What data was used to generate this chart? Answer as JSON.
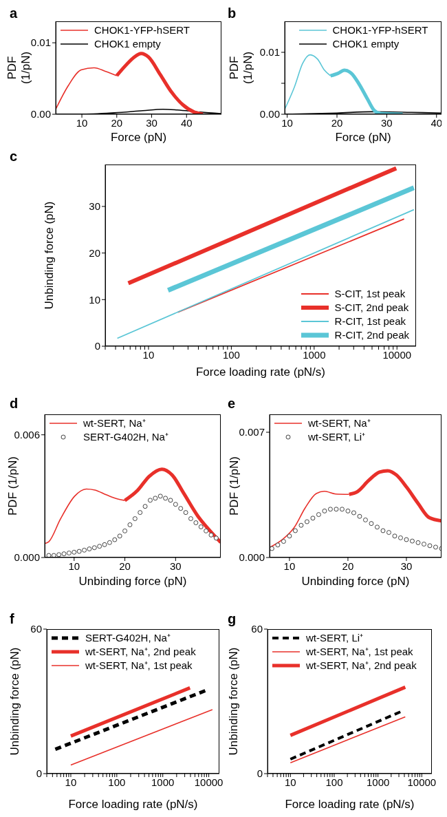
{
  "chart_data": [
    {
      "type": "line",
      "title": "a",
      "xlabel": "Force (pN)",
      "ylabel": "PDF (1/pN)",
      "xlim": [
        2.5,
        50
      ],
      "xticks": [
        10,
        20,
        30,
        40
      ],
      "ylim": [
        0,
        0.013
      ],
      "yticks": [
        {
          "value": 0,
          "label": "0.00"
        },
        {
          "value": 0.01,
          "label": "0.01"
        }
      ],
      "legend": "top left",
      "grid": false,
      "series": [
        {
          "name": "CHOK1-YFP-hSERT",
          "color": "#e8302a",
          "x": [
            2.5,
            6.1,
            9.8,
            13.5,
            16.8,
            20
          ],
          "values": [
            0.0007,
            0.004,
            0.0062,
            0.0065,
            0.006,
            0.0054
          ]
        },
        {
          "name": "CHOK1 empty",
          "color": "#000000",
          "x": [
            2.5,
            9.4,
            19.3,
            27.5,
            33.2,
            37.3,
            43.9,
            49.8
          ],
          "values": [
            0,
            0,
            0.0002,
            0.0005,
            0.0007,
            0.0006,
            0.0003,
            0.0001
          ]
        },
        {
          "color": "#e8302a",
          "x": [
            20,
            22.5,
            25,
            27,
            29.1,
            32.4,
            35.7,
            39,
            42.2,
            44.7
          ],
          "values": [
            0.0054,
            0.0068,
            0.008,
            0.0085,
            0.008,
            0.0056,
            0.0031,
            0.0013,
            0.0003,
            0
          ]
        }
      ]
    },
    {
      "type": "line",
      "title": "b",
      "xlabel": "Force (pN)",
      "ylabel": "PDF (1/pN)",
      "xlim": [
        9.5,
        41
      ],
      "xticks": [
        10,
        20,
        30,
        40
      ],
      "ylim": [
        0,
        0.015
      ],
      "yticks": [
        {
          "value": 0,
          "label": "0.00"
        },
        {
          "value": 0.005,
          "label": null
        },
        {
          "value": 0.01,
          "label": "0.01"
        }
      ],
      "legend": "top",
      "grid": false,
      "series": [
        {
          "name": "CHOK1-YFP-hSERT",
          "color": "#5bc6d6",
          "x": [
            9.5,
            11.5,
            13.1,
            14.6,
            16.1,
            17.5,
            18.7
          ],
          "values": [
            0.0008,
            0.0045,
            0.0082,
            0.0096,
            0.0089,
            0.0071,
            0.0062
          ]
        },
        {
          "name": "CHOK1 empty",
          "color": "#000000",
          "x": [
            9.5,
            20,
            27,
            35,
            41
          ],
          "values": [
            0,
            0.0002,
            0.0004,
            0.0003,
            0.0002
          ]
        },
        {
          "color": "#5bc6d6",
          "x": [
            18.7,
            20.2,
            21.5,
            22.9,
            24.5,
            26.1,
            27.5,
            28.8,
            33.2
          ],
          "values": [
            0.0062,
            0.0066,
            0.0071,
            0.0066,
            0.0048,
            0.0025,
            0.0006,
            0.0001,
            0
          ]
        }
      ]
    },
    {
      "type": "line",
      "title": "c",
      "xlabel": "Force loading rate (pN/s)",
      "ylabel": "Unbinding force (pN)",
      "log": "x",
      "xlim": [
        3,
        17000
      ],
      "xticks": [
        {
          "value": 3,
          "label": null
        },
        {
          "value": 4,
          "label": null
        },
        {
          "value": 5,
          "label": null
        },
        {
          "value": 6,
          "label": null
        },
        {
          "value": 7,
          "label": null
        },
        {
          "value": 8,
          "label": null
        },
        {
          "value": 9,
          "label": null
        },
        10,
        {
          "value": 20,
          "label": null
        },
        {
          "value": 30,
          "label": null
        },
        {
          "value": 40,
          "label": null
        },
        {
          "value": 50,
          "label": null
        },
        {
          "value": 60,
          "label": null
        },
        {
          "value": 70,
          "label": null
        },
        {
          "value": 80,
          "label": null
        },
        {
          "value": 90,
          "label": null
        },
        100,
        {
          "value": 200,
          "label": null
        },
        {
          "value": 300,
          "label": null
        },
        {
          "value": 400,
          "label": null
        },
        {
          "value": 500,
          "label": null
        },
        {
          "value": 600,
          "label": null
        },
        {
          "value": 700,
          "label": null
        },
        {
          "value": 800,
          "label": null
        },
        {
          "value": 900,
          "label": null
        },
        1000,
        {
          "value": 2000,
          "label": null
        },
        {
          "value": 3000,
          "label": null
        },
        {
          "value": 4000,
          "label": null
        },
        {
          "value": 5000,
          "label": null
        },
        {
          "value": 6000,
          "label": null
        },
        {
          "value": 7000,
          "label": null
        },
        {
          "value": 8000,
          "label": null
        },
        {
          "value": 9000,
          "label": null
        },
        10000
      ],
      "ylim": [
        0,
        39
      ],
      "yticks": [
        0,
        10,
        20,
        30
      ],
      "legend": "bottom right",
      "grid": false,
      "series": [
        {
          "name": "S-CIT, 1st peak",
          "color": "#e8302a",
          "x": [
            22.6,
            12200
          ],
          "values": [
            7.3,
            27.3
          ]
        },
        {
          "name": "S-CIT, 2nd peak",
          "color": "#e8302a",
          "x": [
            5.7,
            9800
          ],
          "values": [
            13.5,
            38.2
          ]
        },
        {
          "name": "R-CIT, 1st peak",
          "color": "#5bc6d6",
          "x": [
            4.2,
            16000
          ],
          "values": [
            1.7,
            29.3
          ]
        },
        {
          "name": "R-CIT, 2nd peak",
          "color": "#5bc6d6",
          "x": [
            17.2,
            16000
          ],
          "values": [
            12,
            34
          ]
        }
      ]
    },
    {
      "type": "line",
      "title": "d",
      "xlabel": "Unbinding force (pN)",
      "ylabel": "PDF (1/pN)",
      "xlim": [
        4.2,
        38.9
      ],
      "xticks": [
        10,
        20,
        30
      ],
      "ylim": [
        0,
        0.007
      ],
      "yticks": [
        {
          "value": 0,
          "label": "0.000"
        },
        {
          "value": 0.006,
          "label": "0.006"
        }
      ],
      "legend": "top left",
      "grid": false,
      "series": [
        {
          "name": "wt-SERT, Na⁺",
          "color": "#e8302a",
          "x": [
            4.2,
            5,
            7.3,
            10.1,
            12.4,
            14.1,
            16.3,
            18.6,
            20
          ],
          "values": [
            0.00068,
            0.00077,
            0.00188,
            0.003,
            0.00335,
            0.0033,
            0.00307,
            0.00286,
            0.00279
          ]
        },
        {
          "name": "SERT-G402H, Na⁺",
          "type": "scatter",
          "marker": "circle",
          "color": "#444444",
          "x": [
            5,
            6,
            7,
            8,
            9,
            10,
            11,
            12,
            13,
            14,
            15,
            16,
            17,
            18,
            19,
            20,
            21,
            22,
            23,
            24,
            25,
            26,
            27,
            28,
            29,
            30,
            31,
            32,
            33,
            34,
            35,
            36,
            37,
            38
          ],
          "values": [
            0.0001,
            0.0001,
            0.00014,
            0.00018,
            0.00022,
            0.00026,
            0.0003,
            0.00036,
            0.00042,
            0.00048,
            0.00055,
            0.00063,
            0.00073,
            0.00087,
            0.00105,
            0.0013,
            0.0016,
            0.0019,
            0.0022,
            0.0025,
            0.0028,
            0.0029,
            0.003,
            0.0029,
            0.0028,
            0.0026,
            0.0024,
            0.0022,
            0.0019,
            0.0017,
            0.0015,
            0.0013,
            0.0011,
            0.00095
          ]
        },
        {
          "color": "#e8302a",
          "x": [
            20,
            22.5,
            24.8,
            27.3,
            29.3,
            31.6,
            34.4,
            37.2,
            38.9
          ],
          "values": [
            0.00279,
            0.00328,
            0.00397,
            0.00432,
            0.00404,
            0.00314,
            0.00202,
            0.00119,
            0.00074
          ]
        }
      ]
    },
    {
      "type": "line",
      "title": "e",
      "xlabel": "Unbinding force (pN)",
      "ylabel": "PDF (1/pN)",
      "xlim": [
        6.6,
        36
      ],
      "xticks": [
        10,
        20,
        30
      ],
      "ylim": [
        0,
        0.008
      ],
      "yticks": [
        {
          "value": 0,
          "label": "0.000"
        },
        {
          "value": 0.007,
          "label": "0.007"
        }
      ],
      "legend": "top left",
      "grid": false,
      "series": [
        {
          "name": "wt-SERT, Na⁺",
          "color": "#e8302a",
          "x": [
            6.6,
            8.9,
            10.8,
            12.7,
            14.6,
            16,
            17.9,
            20.2
          ],
          "values": [
            0.00056,
            0.00103,
            0.00167,
            0.00278,
            0.00358,
            0.0037,
            0.00355,
            0.00353
          ]
        },
        {
          "name": "wt-SERT, Li⁺",
          "type": "scatter",
          "marker": "circle",
          "color": "#444444",
          "x": [
            7,
            8,
            9,
            10,
            11,
            12,
            13,
            14,
            15,
            16,
            17,
            18,
            19,
            20,
            21,
            22,
            23,
            24,
            25,
            26,
            27,
            28,
            29,
            30,
            31,
            32,
            33,
            34,
            35,
            36
          ],
          "values": [
            0.0005,
            0.0007,
            0.0009,
            0.0012,
            0.0015,
            0.0018,
            0.002,
            0.0022,
            0.0024,
            0.0026,
            0.0027,
            0.0027,
            0.0027,
            0.0026,
            0.0025,
            0.0023,
            0.0021,
            0.0019,
            0.0017,
            0.0015,
            0.0014,
            0.0012,
            0.0011,
            0.001,
            0.00092,
            0.00083,
            0.00075,
            0.00066,
            0.00058,
            0.0005
          ]
        },
        {
          "color": "#e8302a",
          "x": [
            20.2,
            21.7,
            23.5,
            25.4,
            26.8,
            28.3,
            30.1,
            32,
            33.9,
            36
          ],
          "values": [
            0.00353,
            0.0037,
            0.00429,
            0.00477,
            0.00485,
            0.00461,
            0.0039,
            0.00302,
            0.00223,
            0.00205
          ]
        }
      ]
    },
    {
      "type": "line",
      "title": "f",
      "xlabel": "Force loading rate (pN/s)",
      "ylabel": "Unbinding force (pN)",
      "log": "x",
      "xlim": [
        3,
        17000
      ],
      "xticks": [
        {
          "value": 3,
          "label": null
        },
        {
          "value": 4,
          "label": null
        },
        {
          "value": 5,
          "label": null
        },
        {
          "value": 6,
          "label": null
        },
        {
          "value": 7,
          "label": null
        },
        {
          "value": 8,
          "label": null
        },
        {
          "value": 9,
          "label": null
        },
        10,
        {
          "value": 20,
          "label": null
        },
        {
          "value": 30,
          "label": null
        },
        {
          "value": 40,
          "label": null
        },
        {
          "value": 50,
          "label": null
        },
        {
          "value": 60,
          "label": null
        },
        {
          "value": 70,
          "label": null
        },
        {
          "value": 80,
          "label": null
        },
        {
          "value": 90,
          "label": null
        },
        100,
        {
          "value": 200,
          "label": null
        },
        {
          "value": 300,
          "label": null
        },
        {
          "value": 400,
          "label": null
        },
        {
          "value": 500,
          "label": null
        },
        {
          "value": 600,
          "label": null
        },
        {
          "value": 700,
          "label": null
        },
        {
          "value": 800,
          "label": null
        },
        {
          "value": 900,
          "label": null
        },
        1000,
        {
          "value": 2000,
          "label": null
        },
        {
          "value": 3000,
          "label": null
        },
        {
          "value": 4000,
          "label": null
        },
        {
          "value": 5000,
          "label": null
        },
        {
          "value": 6000,
          "label": null
        },
        {
          "value": 7000,
          "label": null
        },
        {
          "value": 8000,
          "label": null
        },
        {
          "value": 9000,
          "label": null
        },
        10000
      ],
      "ylim": [
        0,
        60
      ],
      "yticks": [
        0,
        60
      ],
      "legend": "top left",
      "grid": false,
      "series": [
        {
          "name": "SERT-G402H, Na⁺",
          "color": "#000000",
          "line_style": "dashed",
          "x": [
            4.6,
            10000
          ],
          "values": [
            10.1,
            35
          ]
        },
        {
          "name": "wt-SERT, Na⁺, 2nd peak",
          "color": "#e8302a",
          "x": [
            10,
            3900
          ],
          "values": [
            15.6,
            35.6
          ]
        },
        {
          "name": "wt-SERT, Na⁺, 1st peak",
          "color": "#e8302a",
          "x": [
            10,
            12000
          ],
          "values": [
            3.6,
            26.6
          ]
        }
      ]
    },
    {
      "type": "line",
      "title": "g",
      "xlabel": "Force loading rate (pN/s)",
      "ylabel": "Unbinding force (pN)",
      "log": "x",
      "xlim": [
        3,
        17000
      ],
      "xticks": [
        {
          "value": 3,
          "label": null
        },
        {
          "value": 4,
          "label": null
        },
        {
          "value": 5,
          "label": null
        },
        {
          "value": 6,
          "label": null
        },
        {
          "value": 7,
          "label": null
        },
        {
          "value": 8,
          "label": null
        },
        {
          "value": 9,
          "label": null
        },
        10,
        {
          "value": 20,
          "label": null
        },
        {
          "value": 30,
          "label": null
        },
        {
          "value": 40,
          "label": null
        },
        {
          "value": 50,
          "label": null
        },
        {
          "value": 60,
          "label": null
        },
        {
          "value": 70,
          "label": null
        },
        {
          "value": 80,
          "label": null
        },
        {
          "value": 90,
          "label": null
        },
        100,
        {
          "value": 200,
          "label": null
        },
        {
          "value": 300,
          "label": null
        },
        {
          "value": 400,
          "label": null
        },
        {
          "value": 500,
          "label": null
        },
        {
          "value": 600,
          "label": null
        },
        {
          "value": 700,
          "label": null
        },
        {
          "value": 800,
          "label": null
        },
        {
          "value": 900,
          "label": null
        },
        1000,
        {
          "value": 2000,
          "label": null
        },
        {
          "value": 3000,
          "label": null
        },
        {
          "value": 4000,
          "label": null
        },
        {
          "value": 5000,
          "label": null
        },
        {
          "value": 6000,
          "label": null
        },
        {
          "value": 7000,
          "label": null
        },
        {
          "value": 8000,
          "label": null
        },
        {
          "value": 9000,
          "label": null
        },
        10000
      ],
      "ylim": [
        0,
        60
      ],
      "yticks": [
        0,
        60
      ],
      "legend": "top left",
      "grid": false,
      "series": [
        {
          "name": "wt-SERT, Li⁺",
          "color": "#000000",
          "line_style": "dashed",
          "x": [
            10,
            3300
          ],
          "values": [
            6,
            25.7
          ]
        },
        {
          "name": "wt-SERT, Na⁺, 1st peak",
          "color": "#e8302a",
          "x": [
            10,
            4200
          ],
          "values": [
            4.5,
            23.6
          ]
        },
        {
          "name": "wt-SERT, Na⁺, 2nd peak",
          "color": "#e8302a",
          "x": [
            10,
            4200
          ],
          "values": [
            15.9,
            35.9
          ]
        }
      ]
    }
  ]
}
